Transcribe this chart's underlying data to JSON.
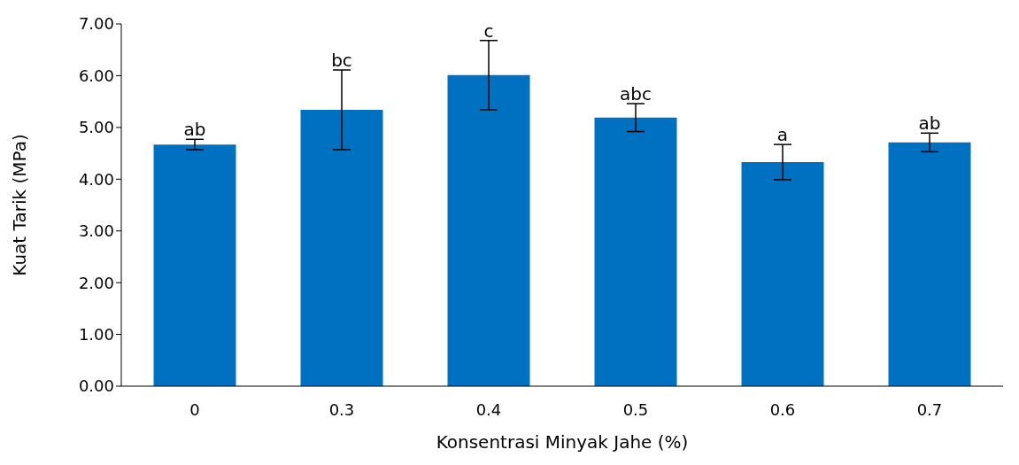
{
  "chart_data": {
    "type": "bar",
    "xlabel": "Konsentrasi Minyak Jahe (%)",
    "ylabel": "Kuat Tarik (MPa)",
    "categories": [
      "0",
      "0.3",
      "0.4",
      "0.5",
      "0.6",
      "0.7"
    ],
    "values": [
      4.67,
      5.34,
      6.01,
      5.19,
      4.33,
      4.71
    ],
    "errors": [
      0.1,
      0.77,
      0.67,
      0.27,
      0.34,
      0.18
    ],
    "color": "#0070c0",
    "ylim": [
      0,
      7
    ],
    "yticks": [
      {
        "value": 0,
        "label": "0.00"
      },
      {
        "value": 1,
        "label": "1.00"
      },
      {
        "value": 2,
        "label": "2.00"
      },
      {
        "value": 3,
        "label": "3.00"
      },
      {
        "value": 4,
        "label": "4.00"
      },
      {
        "value": 5,
        "label": "5.00"
      },
      {
        "value": 6,
        "label": "6.00"
      },
      {
        "value": 7,
        "label": "7.00"
      }
    ],
    "grid": false,
    "legend": false,
    "annotations": [
      {
        "text": "ab",
        "x": "0",
        "y": 4.77
      },
      {
        "text": "bc",
        "x": "0.3",
        "y": 6.11
      },
      {
        "text": "c",
        "x": "0.4",
        "y": 6.68
      },
      {
        "text": "abc",
        "x": "0.5",
        "y": 5.46
      },
      {
        "text": "a",
        "x": "0.6",
        "y": 4.67
      },
      {
        "text": "ab",
        "x": "0.7",
        "y": 4.89
      }
    ]
  }
}
